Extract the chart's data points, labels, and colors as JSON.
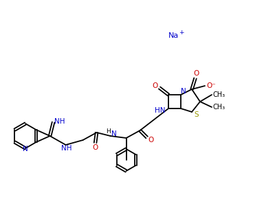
{
  "background_color": "#ffffff",
  "bond_color": "#000000",
  "nitrogen_color": "#0000cc",
  "oxygen_color": "#cc0000",
  "sulfur_color": "#999900",
  "fig_width": 4.0,
  "fig_height": 3.0,
  "dpi": 100,
  "lw": 1.3,
  "na_text": "Na",
  "na_plus": "+",
  "imino_label": "NH",
  "amid_nh_label": "NH",
  "pg_hn_label": "H",
  "pg_n_label": "N",
  "bl_hn_label": "HN",
  "bl_n_label": "N",
  "th_n_label": "N",
  "s_label": "S",
  "o_label": "O",
  "ominus_label": "O⁻",
  "ch3_label": "CH₃"
}
